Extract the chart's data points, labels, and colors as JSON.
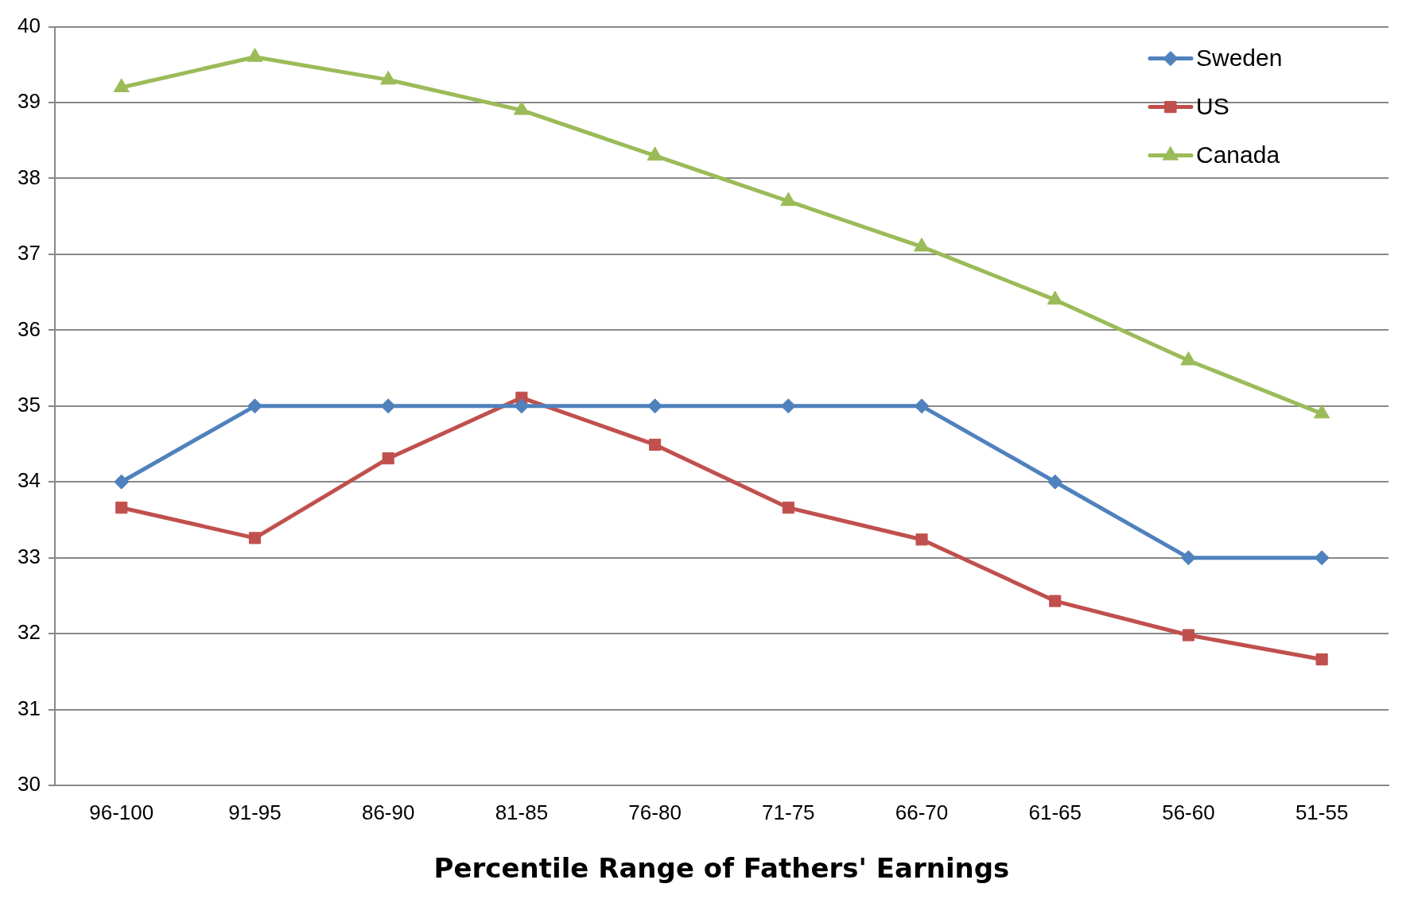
{
  "chart_data": {
    "type": "line",
    "xlabel": "Percentile Range of Fathers' Earnings",
    "categories": [
      "96-100",
      "91-95",
      "86-90",
      "81-85",
      "76-80",
      "71-75",
      "66-70",
      "61-65",
      "56-60",
      "51-55"
    ],
    "series": [
      {
        "name": "Sweden",
        "color": "#4f81bd",
        "marker": "diamond",
        "values": [
          34,
          35,
          35,
          35,
          35,
          35,
          35,
          34,
          33,
          33
        ]
      },
      {
        "name": "US",
        "color": "#c0504d",
        "marker": "square",
        "values": [
          33.66,
          33.26,
          34.31,
          35.11,
          34.49,
          33.66,
          33.24,
          32.43,
          31.98,
          31.66
        ]
      },
      {
        "name": "Canada",
        "color": "#9bbb59",
        "marker": "triangle",
        "values": [
          39.2,
          39.6,
          39.3,
          38.9,
          38.3,
          37.7,
          37.1,
          36.4,
          35.6,
          34.9
        ]
      }
    ],
    "ylim": [
      30,
      40
    ],
    "yticks": [
      30,
      31,
      32,
      33,
      34,
      35,
      36,
      37,
      38,
      39,
      40
    ],
    "grid": "y",
    "legend": "top right",
    "line_style": "solid"
  }
}
